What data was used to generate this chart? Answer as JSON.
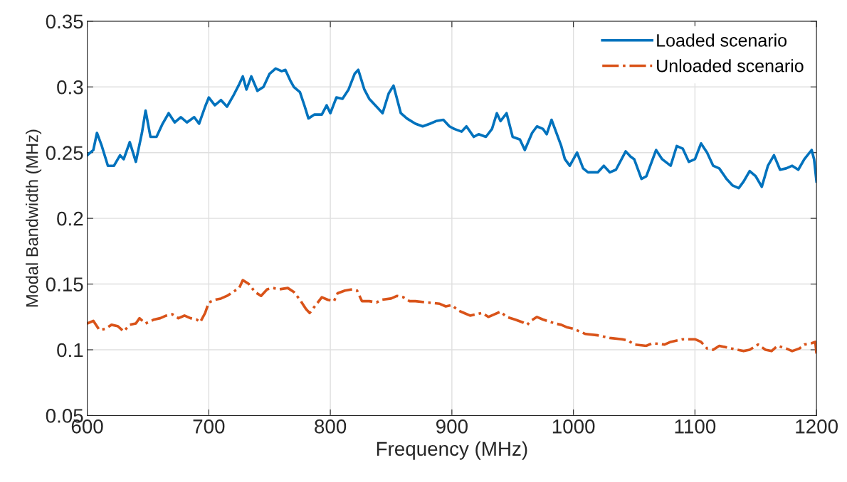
{
  "chart_data": {
    "type": "line",
    "xlabel": "Frequency (MHz)",
    "ylabel": "Modal Bandwidth (MHz)",
    "xlim": [
      600,
      1200
    ],
    "xticks": [
      600,
      700,
      800,
      900,
      1000,
      1100,
      1200
    ],
    "ylim": [
      0.05,
      0.35
    ],
    "yticks": [
      0.05,
      0.1,
      0.15,
      0.2,
      0.25,
      0.3,
      0.35
    ],
    "grid": true,
    "legend": "top right",
    "series": [
      {
        "name": "Loaded scenario",
        "color": "#0072bd",
        "line_style": "solid",
        "x": [
          600,
          605,
          608,
          612,
          617,
          622,
          627,
          630,
          635,
          640,
          645,
          648,
          652,
          657,
          662,
          667,
          672,
          677,
          682,
          688,
          692,
          697,
          700,
          705,
          710,
          715,
          720,
          725,
          728,
          731,
          735,
          740,
          745,
          750,
          755,
          760,
          763,
          767,
          770,
          775,
          779,
          782,
          787,
          793,
          797,
          800,
          805,
          810,
          815,
          820,
          823,
          828,
          832,
          838,
          843,
          848,
          852,
          858,
          863,
          870,
          876,
          882,
          887,
          893,
          898,
          902,
          908,
          912,
          918,
          922,
          928,
          933,
          937,
          940,
          945,
          950,
          956,
          960,
          966,
          970,
          975,
          978,
          982,
          986,
          990,
          993,
          997,
          1003,
          1008,
          1012,
          1020,
          1025,
          1030,
          1035,
          1043,
          1047,
          1050,
          1056,
          1060,
          1068,
          1073,
          1080,
          1085,
          1090,
          1095,
          1100,
          1105,
          1110,
          1115,
          1120,
          1126,
          1131,
          1136,
          1140,
          1145,
          1150,
          1155,
          1160,
          1165,
          1170,
          1175,
          1180,
          1185,
          1190,
          1196,
          1198,
          1200
        ],
        "values": [
          0.248,
          0.252,
          0.265,
          0.255,
          0.24,
          0.24,
          0.248,
          0.245,
          0.258,
          0.243,
          0.265,
          0.282,
          0.262,
          0.262,
          0.272,
          0.28,
          0.273,
          0.277,
          0.273,
          0.277,
          0.272,
          0.285,
          0.292,
          0.286,
          0.29,
          0.285,
          0.293,
          0.302,
          0.308,
          0.298,
          0.308,
          0.297,
          0.3,
          0.31,
          0.314,
          0.312,
          0.313,
          0.305,
          0.3,
          0.296,
          0.285,
          0.276,
          0.279,
          0.279,
          0.286,
          0.28,
          0.292,
          0.291,
          0.298,
          0.31,
          0.313,
          0.298,
          0.291,
          0.285,
          0.28,
          0.295,
          0.301,
          0.28,
          0.276,
          0.272,
          0.27,
          0.272,
          0.274,
          0.275,
          0.27,
          0.268,
          0.266,
          0.27,
          0.262,
          0.264,
          0.262,
          0.268,
          0.28,
          0.274,
          0.28,
          0.262,
          0.26,
          0.252,
          0.265,
          0.27,
          0.268,
          0.264,
          0.275,
          0.265,
          0.255,
          0.245,
          0.24,
          0.25,
          0.238,
          0.235,
          0.235,
          0.24,
          0.235,
          0.237,
          0.251,
          0.247,
          0.245,
          0.23,
          0.232,
          0.252,
          0.245,
          0.24,
          0.255,
          0.253,
          0.243,
          0.245,
          0.257,
          0.25,
          0.24,
          0.238,
          0.23,
          0.225,
          0.223,
          0.228,
          0.236,
          0.232,
          0.224,
          0.24,
          0.248,
          0.237,
          0.238,
          0.24,
          0.237,
          0.245,
          0.252,
          0.245,
          0.228
        ]
      },
      {
        "name": "Unloaded scenario",
        "color": "#d95319",
        "line_style": "dashdot",
        "x": [
          600,
          605,
          610,
          615,
          620,
          625,
          630,
          635,
          640,
          643,
          648,
          655,
          660,
          665,
          670,
          675,
          680,
          685,
          690,
          693,
          697,
          700,
          705,
          710,
          715,
          720,
          725,
          728,
          733,
          738,
          743,
          748,
          753,
          758,
          765,
          770,
          775,
          780,
          783,
          788,
          793,
          798,
          803,
          806,
          812,
          818,
          822,
          826,
          832,
          838,
          842,
          850,
          855,
          860,
          865,
          870,
          880,
          890,
          895,
          900,
          905,
          910,
          915,
          920,
          925,
          930,
          935,
          940,
          945,
          952,
          958,
          962,
          965,
          970,
          975,
          985,
          990,
          995,
          1000,
          1005,
          1010,
          1020,
          1030,
          1040,
          1045,
          1050,
          1060,
          1065,
          1075,
          1080,
          1090,
          1100,
          1105,
          1110,
          1115,
          1120,
          1130,
          1140,
          1145,
          1152,
          1158,
          1163,
          1168,
          1175,
          1180,
          1186,
          1190,
          1196,
          1199,
          1200
        ],
        "values": [
          0.12,
          0.122,
          0.115,
          0.116,
          0.119,
          0.118,
          0.114,
          0.119,
          0.12,
          0.124,
          0.12,
          0.123,
          0.124,
          0.126,
          0.127,
          0.124,
          0.126,
          0.124,
          0.123,
          0.121,
          0.128,
          0.136,
          0.138,
          0.139,
          0.141,
          0.144,
          0.147,
          0.153,
          0.15,
          0.144,
          0.141,
          0.146,
          0.147,
          0.146,
          0.147,
          0.144,
          0.138,
          0.131,
          0.128,
          0.134,
          0.14,
          0.138,
          0.137,
          0.143,
          0.145,
          0.146,
          0.145,
          0.137,
          0.137,
          0.136,
          0.138,
          0.139,
          0.141,
          0.14,
          0.137,
          0.137,
          0.136,
          0.135,
          0.133,
          0.134,
          0.13,
          0.128,
          0.126,
          0.127,
          0.128,
          0.125,
          0.127,
          0.129,
          0.125,
          0.123,
          0.121,
          0.119,
          0.122,
          0.125,
          0.123,
          0.12,
          0.119,
          0.117,
          0.116,
          0.114,
          0.112,
          0.111,
          0.109,
          0.108,
          0.107,
          0.104,
          0.103,
          0.105,
          0.104,
          0.106,
          0.108,
          0.108,
          0.106,
          0.101,
          0.1,
          0.103,
          0.101,
          0.099,
          0.1,
          0.104,
          0.1,
          0.099,
          0.103,
          0.101,
          0.099,
          0.101,
          0.104,
          0.105,
          0.106,
          0.097
        ]
      }
    ]
  }
}
